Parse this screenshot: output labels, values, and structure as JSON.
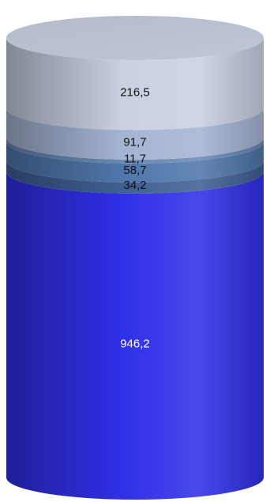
{
  "chart_data": {
    "type": "bar",
    "orientation": "vertical",
    "stacked": true,
    "shape": "cylinder",
    "title": "",
    "xlabel": "",
    "ylabel": "",
    "grid": false,
    "legend": "none",
    "series": [
      {
        "value": 946.2,
        "label": "946,2",
        "color": "#2f2fe8",
        "label_color": "#ffffff"
      },
      {
        "value": 34.2,
        "label": "34,2",
        "color": "#3f5f93",
        "label_color": "#111111"
      },
      {
        "value": 58.7,
        "label": "58,7",
        "color": "#4f77ab",
        "label_color": "#111111"
      },
      {
        "value": 11.7,
        "label": "11,7",
        "color": "#6a88b4",
        "label_color": "#111111"
      },
      {
        "value": 91.7,
        "label": "91,7",
        "color": "#a4b4d3",
        "label_color": "#111111"
      },
      {
        "value": 216.5,
        "label": "216,5",
        "color": "#c8d0e2",
        "label_color": "#111111"
      }
    ]
  }
}
